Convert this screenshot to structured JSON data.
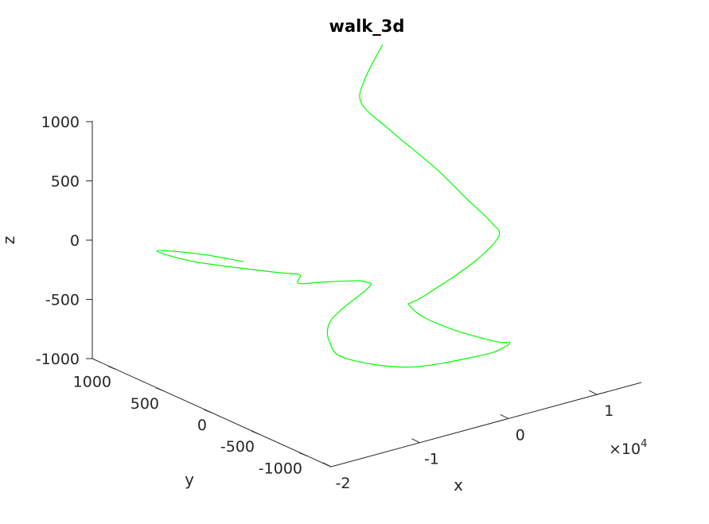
{
  "chart_data": {
    "type": "line",
    "title": "walk_3d",
    "xlabel": "x",
    "ylabel": "y",
    "zlabel": "z",
    "x_exponent_label": "×10",
    "x_exponent_power": "4",
    "x_scale": 10000,
    "xlim": [
      -20000,
      15000
    ],
    "ylim": [
      -1250,
      1250
    ],
    "zlim": [
      -1000,
      1000
    ],
    "x_ticks": [
      {
        "value": -20000,
        "label": "-2"
      },
      {
        "value": -10000,
        "label": "-1"
      },
      {
        "value": 0,
        "label": "0"
      },
      {
        "value": 10000,
        "label": "1"
      }
    ],
    "y_ticks": [
      {
        "value": -1000,
        "label": "-1000"
      },
      {
        "value": -500,
        "label": "-500"
      },
      {
        "value": 0,
        "label": "0"
      },
      {
        "value": 500,
        "label": "500"
      },
      {
        "value": 1000,
        "label": "1000"
      }
    ],
    "z_ticks": [
      {
        "value": -1000,
        "label": "-1000"
      },
      {
        "value": -500,
        "label": "-500"
      },
      {
        "value": 0,
        "label": "0"
      },
      {
        "value": 500,
        "label": "500"
      },
      {
        "value": 1000,
        "label": "1000"
      }
    ],
    "grid": false,
    "series": [
      {
        "color": "#00ff00",
        "points": [
          [
            12490,
            1226,
            1000
          ],
          [
            7934,
            1000,
            864
          ],
          [
            6062,
            848,
            768
          ],
          [
            7400,
            674,
            580
          ],
          [
            9920,
            423,
            293
          ],
          [
            11100,
            214,
            93
          ],
          [
            11540,
            3,
            -34
          ],
          [
            10922,
            -133,
            -94
          ],
          [
            5692,
            -331,
            -149
          ],
          [
            -1096,
            -477,
            -221
          ],
          [
            -2730,
            -488,
            -243
          ],
          [
            -2300,
            -424,
            -298
          ],
          [
            -1000,
            -450,
            -413
          ],
          [
            2264,
            -492,
            -580
          ],
          [
            5600,
            -607,
            -700
          ],
          [
            6410,
            -665,
            -700
          ],
          [
            5890,
            -663,
            -730
          ],
          [
            3810,
            -629,
            -767
          ],
          [
            -3290,
            -517,
            -766
          ],
          [
            -8930,
            -365,
            -630
          ],
          [
            -9700,
            -275,
            -504
          ],
          [
            -8960,
            -200,
            -410
          ],
          [
            -6700,
            -100,
            -380
          ],
          [
            -3800,
            -20,
            -346
          ],
          [
            -1800,
            60,
            -346
          ],
          [
            -500,
            140,
            -361
          ],
          [
            -430,
            180,
            -366
          ],
          [
            -1220,
            202,
            -342
          ],
          [
            -4600,
            239,
            -297
          ],
          [
            -7400,
            252,
            -258
          ],
          [
            -8100,
            190,
            -179
          ],
          [
            -8400,
            170,
            -131
          ],
          [
            -10900,
            235,
            -80
          ],
          [
            -16200,
            517,
            6
          ],
          [
            -17700,
            788,
            32
          ],
          [
            -13840,
            710,
            -44
          ],
          [
            -10600,
            540,
            -113
          ]
        ]
      }
    ]
  }
}
